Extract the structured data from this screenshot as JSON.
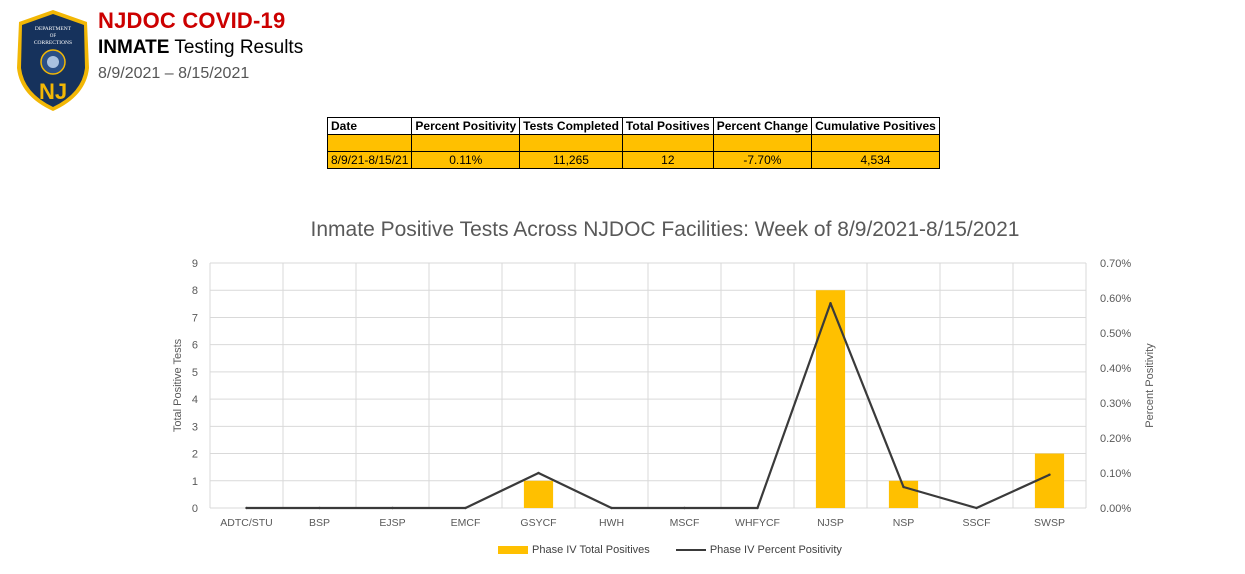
{
  "header": {
    "title": "NJDOC COVID-19",
    "subtitle_bold": "INMATE",
    "subtitle_rest": " Testing Results",
    "date_range": "8/9/2021 – 8/15/2021",
    "badge": {
      "text_top": "DEPARTMENT",
      "text_of": "OF",
      "text_dept": "CORRECTIONS",
      "letters": "NJ",
      "colors": {
        "shield": "#16325c",
        "gold": "#f2b705",
        "letters": "#f2b705"
      }
    }
  },
  "summary_table": {
    "headers": [
      "Date",
      "Percent Positivity",
      "Tests Completed",
      "Total Positives",
      "Percent Change",
      "Cumulative Positives"
    ],
    "rows": [
      [
        "8/9/21-8/15/21",
        "0.11%",
        "11,265",
        "12",
        "-7.70%",
        "4,534"
      ]
    ]
  },
  "chart_data": {
    "type": "bar",
    "title": "Inmate Positive Tests Across NJDOC Facilities: Week of 8/9/2021-8/15/2021",
    "categories": [
      "ADTC/STU",
      "BSP",
      "EJSP",
      "EMCF",
      "GSYCF",
      "HWH",
      "MSCF",
      "WHFYCF",
      "NJSP",
      "NSP",
      "SSCF",
      "SWSP"
    ],
    "series": [
      {
        "name": "Phase IV Total Positives",
        "type": "bar",
        "axis": "left",
        "color": "#ffc000",
        "values": [
          0,
          0,
          0,
          0,
          1,
          0,
          0,
          0,
          8,
          1,
          0,
          2
        ]
      },
      {
        "name": "Phase IV Percent Positivity",
        "type": "line",
        "axis": "right",
        "color": "#3a3a3a",
        "values": [
          0.0,
          0.0,
          0.0,
          0.0,
          0.1,
          0.0,
          0.0,
          0.0,
          0.585,
          0.06,
          0.0,
          0.095
        ]
      }
    ],
    "ylabel": "Total Positive Tests",
    "y2label": "Percent Positivity",
    "ylim": [
      0,
      9
    ],
    "y_ticks": [
      0,
      1,
      2,
      3,
      4,
      5,
      6,
      7,
      8,
      9
    ],
    "y2lim": [
      0,
      0.7
    ],
    "y2_ticks": [
      "0.00%",
      "0.10%",
      "0.20%",
      "0.30%",
      "0.40%",
      "0.50%",
      "0.60%",
      "0.70%"
    ],
    "grid": true,
    "legend": "bottom"
  }
}
